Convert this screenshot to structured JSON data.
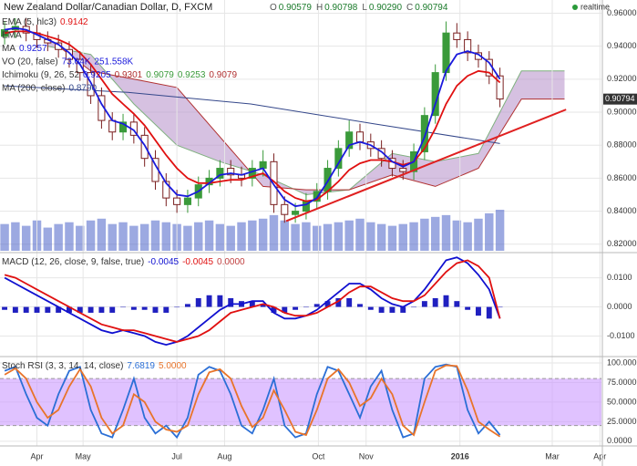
{
  "header": {
    "title": "New Zealand Dollar/Canadian Dollar, D, FXCM",
    "ohlc": [
      {
        "label": "O",
        "value": "0.90579"
      },
      {
        "label": "H",
        "value": "0.90798"
      },
      {
        "label": "L",
        "value": "0.90290"
      },
      {
        "label": "C",
        "value": "0.90794"
      }
    ],
    "status": "realtime"
  },
  "chart_data": [
    {
      "type": "candlestick",
      "xlim": [
        7,
        398
      ],
      "ylim": [
        0.816,
        0.968
      ],
      "yticks": [
        {
          "value": 0.82,
          "label": "0.82000"
        },
        {
          "value": 0.84,
          "label": "0.84000"
        },
        {
          "value": 0.86,
          "label": "0.86000"
        },
        {
          "value": 0.88,
          "label": "0.88000"
        },
        {
          "value": 0.9,
          "label": "0.90000"
        },
        {
          "value": 0.92,
          "label": "0.92000"
        },
        {
          "value": 0.94,
          "label": "0.94000"
        },
        {
          "value": 0.96,
          "label": "0.96000"
        }
      ],
      "grid": true,
      "up_color": "#3a9a3a",
      "down_color": "#7a1f1f",
      "x": [
        10,
        17,
        24,
        31,
        38,
        45,
        52,
        59,
        66,
        73,
        80,
        87,
        94,
        101,
        108,
        115,
        122,
        129,
        136,
        143,
        150,
        157,
        164,
        171,
        178,
        185,
        192,
        199,
        206,
        213,
        220,
        227,
        234,
        241,
        248,
        255,
        262,
        269,
        276,
        283,
        290,
        297,
        304,
        311,
        318,
        325,
        332
      ],
      "open": [
        0.946,
        0.95,
        0.952,
        0.948,
        0.944,
        0.942,
        0.938,
        0.932,
        0.924,
        0.91,
        0.895,
        0.888,
        0.894,
        0.886,
        0.872,
        0.858,
        0.848,
        0.844,
        0.848,
        0.856,
        0.86,
        0.866,
        0.862,
        0.86,
        0.866,
        0.87,
        0.844,
        0.838,
        0.84,
        0.846,
        0.852,
        0.866,
        0.878,
        0.888,
        0.882,
        0.878,
        0.872,
        0.866,
        0.864,
        0.876,
        0.898,
        0.924,
        0.948,
        0.944,
        0.936,
        0.932,
        0.922
      ],
      "high": [
        0.955,
        0.957,
        0.957,
        0.953,
        0.949,
        0.947,
        0.943,
        0.937,
        0.929,
        0.915,
        0.9,
        0.899,
        0.899,
        0.891,
        0.877,
        0.863,
        0.853,
        0.853,
        0.861,
        0.865,
        0.871,
        0.871,
        0.867,
        0.871,
        0.877,
        0.875,
        0.849,
        0.845,
        0.851,
        0.857,
        0.871,
        0.883,
        0.895,
        0.893,
        0.887,
        0.883,
        0.877,
        0.871,
        0.881,
        0.903,
        0.929,
        0.955,
        0.954,
        0.949,
        0.941,
        0.937,
        0.927
      ],
      "low": [
        0.941,
        0.945,
        0.943,
        0.939,
        0.937,
        0.933,
        0.927,
        0.919,
        0.905,
        0.89,
        0.883,
        0.883,
        0.881,
        0.867,
        0.853,
        0.843,
        0.839,
        0.839,
        0.843,
        0.851,
        0.855,
        0.857,
        0.855,
        0.855,
        0.861,
        0.839,
        0.833,
        0.833,
        0.835,
        0.841,
        0.847,
        0.861,
        0.873,
        0.877,
        0.873,
        0.867,
        0.861,
        0.859,
        0.859,
        0.871,
        0.893,
        0.919,
        0.939,
        0.931,
        0.927,
        0.917,
        0.903
      ],
      "close": [
        0.95,
        0.952,
        0.948,
        0.944,
        0.942,
        0.938,
        0.932,
        0.924,
        0.91,
        0.895,
        0.888,
        0.894,
        0.886,
        0.872,
        0.858,
        0.848,
        0.844,
        0.848,
        0.856,
        0.86,
        0.866,
        0.862,
        0.86,
        0.866,
        0.87,
        0.844,
        0.838,
        0.84,
        0.846,
        0.852,
        0.866,
        0.878,
        0.888,
        0.882,
        0.878,
        0.872,
        0.866,
        0.864,
        0.876,
        0.898,
        0.924,
        0.948,
        0.944,
        0.936,
        0.932,
        0.922,
        0.908
      ],
      "volume": [
        150000,
        160000,
        140000,
        170000,
        130000,
        150000,
        160000,
        140000,
        170000,
        180000,
        150000,
        160000,
        140000,
        150000,
        170000,
        160000,
        150000,
        140000,
        160000,
        170000,
        150000,
        140000,
        160000,
        170000,
        180000,
        200000,
        170000,
        150000,
        160000,
        140000,
        150000,
        160000,
        170000,
        180000,
        160000,
        150000,
        140000,
        150000,
        160000,
        180000,
        190000,
        200000,
        170000,
        160000,
        180000,
        210000,
        230000
      ],
      "volume_color": "#4a63c8",
      "cloud": {
        "x": [
          38,
          66,
          94,
          122,
          150,
          178,
          206,
          234,
          262,
          290,
          318,
          346,
          374
        ],
        "span_a": [
          0.94,
          0.935,
          0.905,
          0.88,
          0.87,
          0.862,
          0.85,
          0.853,
          0.875,
          0.87,
          0.875,
          0.925,
          0.925
        ],
        "span_b": [
          0.945,
          0.925,
          0.92,
          0.915,
          0.885,
          0.855,
          0.853,
          0.853,
          0.862,
          0.855,
          0.866,
          0.908,
          0.908
        ],
        "color": "#b48ec8",
        "a_color": "#7fb07f",
        "b_color": "#b03030"
      },
      "series": [
        {
          "color": "#e01010",
          "values": [
            0.948,
            0.949,
            0.949,
            0.948,
            0.946,
            0.944,
            0.941,
            0.936,
            0.929,
            0.92,
            0.911,
            0.905,
            0.899,
            0.892,
            0.883,
            0.874,
            0.866,
            0.86,
            0.857,
            0.857,
            0.858,
            0.859,
            0.859,
            0.861,
            0.863,
            0.858,
            0.852,
            0.848,
            0.846,
            0.847,
            0.852,
            0.858,
            0.865,
            0.869,
            0.871,
            0.871,
            0.87,
            0.868,
            0.87,
            0.878,
            0.89,
            0.905,
            0.916,
            0.922,
            0.925,
            0.924,
            0.918
          ]
        },
        {
          "color": "#1a1adc",
          "values": [
            0.95,
            0.951,
            0.95,
            0.947,
            0.944,
            0.941,
            0.936,
            0.929,
            0.918,
            0.905,
            0.895,
            0.893,
            0.889,
            0.88,
            0.868,
            0.857,
            0.85,
            0.849,
            0.852,
            0.857,
            0.862,
            0.863,
            0.862,
            0.864,
            0.866,
            0.856,
            0.847,
            0.843,
            0.844,
            0.848,
            0.858,
            0.869,
            0.88,
            0.882,
            0.88,
            0.876,
            0.87,
            0.867,
            0.87,
            0.885,
            0.905,
            0.925,
            0.935,
            0.937,
            0.935,
            0.93,
            0.92
          ]
        }
      ],
      "ma200": {
        "color": "#34478a",
        "x": [
          10,
          90,
          170,
          250,
          332
        ],
        "values": [
          0.916,
          0.912,
          0.905,
          0.893,
          0.881
        ]
      },
      "trendline": {
        "color": "#e02020",
        "x": [
          193,
          375
        ],
        "values": [
          0.834,
          0.9016
        ]
      },
      "last_price": {
        "value": 0.90794,
        "label": "0.90794"
      },
      "legend": [
        {
          "text": "EMA (5, hlc3)",
          "values": [
            {
              "text": "0.9142",
              "color": "#e01010"
            }
          ]
        },
        {
          "text": "EMA",
          "values": []
        },
        {
          "text": "MA",
          "values": [
            {
              "text": "0.9257",
              "color": "#1a1adc"
            }
          ]
        },
        {
          "text": "VO (20, false)",
          "values": [
            {
              "text": "73.04K",
              "color": "#1a1adc"
            },
            {
              "text": "251.558K",
              "color": "#1a1adc"
            }
          ]
        },
        {
          "text": "Ichimoku (9, 26, 52",
          "values": [
            {
              "text": "0.9205",
              "color": "#1a1adc"
            },
            {
              "text": "0.9301",
              "color": "#b03030"
            },
            {
              "text": "0.9079",
              "color": "#3a9a3a"
            },
            {
              "text": "0.9253",
              "color": "#3a9a3a"
            },
            {
              "text": "0.9079",
              "color": "#b03030"
            }
          ]
        },
        {
          "text": "MA (200, close)",
          "values": [
            {
              "text": "0.8790",
              "color": "#34478a"
            }
          ]
        }
      ]
    },
    {
      "type": "line",
      "xlim": [
        7,
        398
      ],
      "ylim": [
        -0.0164,
        0.018
      ],
      "yticks": [
        {
          "value": -0.01,
          "label": "-0.0100"
        },
        {
          "value": 0,
          "label": "0.0000"
        },
        {
          "value": 0.01,
          "label": "0.0100"
        }
      ],
      "grid": true,
      "x": [
        10,
        17,
        24,
        31,
        38,
        45,
        52,
        59,
        66,
        73,
        80,
        87,
        94,
        101,
        108,
        115,
        122,
        129,
        136,
        143,
        150,
        157,
        164,
        171,
        178,
        185,
        192,
        199,
        206,
        213,
        220,
        227,
        234,
        241,
        248,
        255,
        262,
        269,
        276,
        283,
        290,
        297,
        304,
        311,
        318,
        325,
        332
      ],
      "histogram": {
        "color": "#2020c0",
        "values": [
          -0.001,
          -0.002,
          -0.002,
          -0.002,
          -0.002,
          -0.002,
          -0.002,
          -0.002,
          -0.002,
          -0.002,
          -0.002,
          0,
          -0.001,
          -0.001,
          -0.002,
          -0.002,
          0,
          0.001,
          0.003,
          0.004,
          0.004,
          0.003,
          0.002,
          0.002,
          0.001,
          -0.002,
          -0.002,
          -0.001,
          0,
          0.001,
          0.002,
          0.003,
          0.003,
          0.001,
          -0.001,
          -0.002,
          -0.002,
          -0.002,
          0,
          0.002,
          0.003,
          0.004,
          0.002,
          -0.001,
          -0.003,
          -0.004,
          0
        ]
      },
      "series": [
        {
          "color": "#1010d0",
          "values": [
            0.01,
            0.008,
            0.006,
            0.004,
            0.002,
            0,
            -0.002,
            -0.004,
            -0.006,
            -0.008,
            -0.009,
            -0.008,
            -0.009,
            -0.01,
            -0.012,
            -0.013,
            -0.012,
            -0.01,
            -0.007,
            -0.004,
            -0.001,
            0.001,
            0.001,
            0.002,
            0.002,
            -0.002,
            -0.004,
            -0.004,
            -0.003,
            -0.001,
            0.002,
            0.005,
            0.008,
            0.008,
            0.006,
            0.003,
            0.001,
            0,
            0.002,
            0.006,
            0.011,
            0.016,
            0.017,
            0.015,
            0.011,
            0.006,
            -0.004
          ]
        },
        {
          "color": "#e01010",
          "values": [
            0.011,
            0.01,
            0.008,
            0.006,
            0.004,
            0.002,
            0,
            -0.002,
            -0.004,
            -0.006,
            -0.007,
            -0.008,
            -0.008,
            -0.009,
            -0.01,
            -0.011,
            -0.012,
            -0.011,
            -0.01,
            -0.008,
            -0.005,
            -0.002,
            -0.001,
            0,
            0.001,
            0,
            -0.002,
            -0.003,
            -0.003,
            -0.002,
            0,
            0.002,
            0.005,
            0.007,
            0.007,
            0.005,
            0.003,
            0.002,
            0.002,
            0.004,
            0.008,
            0.012,
            0.015,
            0.016,
            0.014,
            0.01,
            -0.004
          ]
        }
      ],
      "legend": [
        {
          "text": "MACD (12, 26, close, 9, false, true)",
          "values": [
            {
              "text": "-0.0045",
              "color": "#1010d0"
            },
            {
              "text": "-0.0045",
              "color": "#e01010"
            },
            {
              "text": "0.0000",
              "color": "#c04040"
            }
          ]
        }
      ]
    },
    {
      "type": "line",
      "xlim": [
        7,
        398
      ],
      "ylim": [
        -6,
        107
      ],
      "yticks": [
        {
          "value": 0,
          "label": "0.0000"
        },
        {
          "value": 25,
          "label": "25.0000"
        },
        {
          "value": 50,
          "label": "50.0000"
        },
        {
          "value": 75,
          "label": "75.0000"
        },
        {
          "value": 100,
          "label": "100.000"
        }
      ],
      "xticks": [
        {
          "value": 31,
          "label": "Apr"
        },
        {
          "value": 61,
          "label": "May"
        },
        {
          "value": 122,
          "label": "Jul"
        },
        {
          "value": 153,
          "label": "Aug"
        },
        {
          "value": 214,
          "label": "Oct"
        },
        {
          "value": 245,
          "label": "Nov"
        },
        {
          "value": 306,
          "label": "2016"
        },
        {
          "value": 366,
          "label": "Mar"
        },
        {
          "value": 397,
          "label": "Apr"
        }
      ],
      "grid": true,
      "band": [
        20,
        80
      ],
      "band_color": "#cc99ff",
      "x": [
        10,
        17,
        24,
        31,
        38,
        45,
        52,
        59,
        66,
        73,
        80,
        87,
        94,
        101,
        108,
        115,
        122,
        129,
        136,
        143,
        150,
        157,
        164,
        171,
        178,
        185,
        192,
        199,
        206,
        213,
        220,
        227,
        234,
        241,
        248,
        255,
        262,
        269,
        276,
        283,
        290,
        297,
        304,
        311,
        318,
        325,
        332
      ],
      "series": [
        {
          "color": "#2b6fd6",
          "values": [
            90,
            95,
            60,
            30,
            20,
            60,
            90,
            95,
            40,
            10,
            5,
            40,
            80,
            30,
            10,
            20,
            5,
            30,
            85,
            95,
            90,
            60,
            20,
            10,
            40,
            80,
            20,
            5,
            10,
            60,
            95,
            90,
            60,
            30,
            70,
            90,
            40,
            5,
            10,
            80,
            95,
            98,
            95,
            40,
            10,
            25,
            8
          ]
        },
        {
          "color": "#e8742a",
          "values": [
            85,
            93,
            80,
            50,
            30,
            40,
            70,
            92,
            70,
            30,
            10,
            20,
            60,
            50,
            25,
            15,
            12,
            20,
            60,
            88,
            92,
            80,
            45,
            18,
            30,
            65,
            40,
            12,
            8,
            40,
            80,
            92,
            75,
            45,
            55,
            80,
            60,
            20,
            8,
            50,
            90,
            97,
            96,
            65,
            25,
            15,
            6
          ]
        }
      ],
      "legend": [
        {
          "text": "Stoch RSI (3, 3, 14, 14, close)",
          "values": [
            {
              "text": "7.6819",
              "color": "#2b6fd6"
            },
            {
              "text": "5.0000",
              "color": "#e8742a"
            }
          ]
        }
      ]
    }
  ]
}
